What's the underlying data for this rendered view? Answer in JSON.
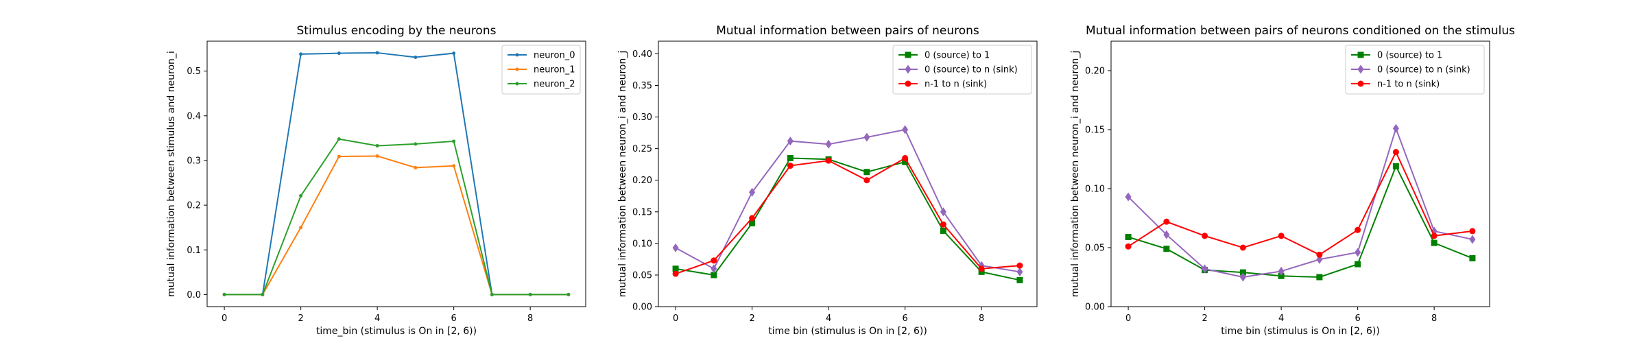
{
  "chart_data": [
    {
      "type": "line",
      "title": "Stimulus encoding by the neurons",
      "xlabel": "time_bin (stimulus is On in [2, 6))",
      "ylabel": "mutual information between stimulus and neuron_i",
      "x": [
        0,
        1,
        2,
        3,
        4,
        5,
        6,
        7,
        8,
        9
      ],
      "xlim": [
        -0.45,
        9.45
      ],
      "ylim": [
        -0.027,
        0.567
      ],
      "xticks": [
        0,
        2,
        4,
        6,
        8
      ],
      "yticks": [
        0.0,
        0.1,
        0.2,
        0.3,
        0.4,
        0.5
      ],
      "grid": false,
      "legend": "top-right",
      "series": [
        {
          "name": "neuron_0",
          "color": "#1f77b4",
          "marker": "dot",
          "values": [
            0.0,
            0.0,
            0.538,
            0.54,
            0.541,
            0.531,
            0.54,
            0.0,
            0.0,
            0.0
          ]
        },
        {
          "name": "neuron_1",
          "color": "#ff7f0e",
          "marker": "dot",
          "values": [
            0.0,
            0.0,
            0.15,
            0.309,
            0.31,
            0.284,
            0.288,
            0.0,
            0.0,
            0.0
          ]
        },
        {
          "name": "neuron_2",
          "color": "#2ca02c",
          "marker": "dot",
          "values": [
            0.0,
            0.0,
            0.221,
            0.348,
            0.333,
            0.337,
            0.343,
            0.0,
            0.0,
            0.0
          ]
        }
      ]
    },
    {
      "type": "line",
      "title": "Mutual information between pairs of neurons",
      "xlabel": "time bin (stimulus is On in [2, 6))",
      "ylabel": "mutual information between neuron_i and neuron_j",
      "x": [
        0,
        1,
        2,
        3,
        4,
        5,
        6,
        7,
        8,
        9
      ],
      "xlim": [
        -0.45,
        9.45
      ],
      "ylim": [
        0.0,
        0.42
      ],
      "xticks": [
        0,
        2,
        4,
        6,
        8
      ],
      "yticks": [
        0.0,
        0.05,
        0.1,
        0.15,
        0.2,
        0.25,
        0.3,
        0.35,
        0.4
      ],
      "grid": false,
      "legend": "top-right",
      "series": [
        {
          "name": "0 (source) to 1",
          "color": "#008000",
          "marker": "square",
          "values": [
            0.06,
            0.05,
            0.132,
            0.235,
            0.233,
            0.213,
            0.229,
            0.12,
            0.055,
            0.042
          ]
        },
        {
          "name": "0 (source) to n (sink)",
          "color": "#9467bd",
          "marker": "diamond",
          "values": [
            0.093,
            0.06,
            0.181,
            0.262,
            0.257,
            0.268,
            0.28,
            0.15,
            0.065,
            0.055
          ]
        },
        {
          "name": "n-1 to n (sink)",
          "color": "#ff0000",
          "marker": "circle",
          "values": [
            0.052,
            0.073,
            0.14,
            0.223,
            0.231,
            0.2,
            0.235,
            0.13,
            0.06,
            0.065
          ]
        }
      ]
    },
    {
      "type": "line",
      "title": "Mutual information between pairs of neurons conditioned on the stimulus",
      "xlabel": "time bin (stimulus is On in [2, 6))",
      "ylabel": "mutual information between neuron_i and neuron_j",
      "x": [
        0,
        1,
        2,
        3,
        4,
        5,
        6,
        7,
        8,
        9
      ],
      "xlim": [
        -0.45,
        9.45
      ],
      "ylim": [
        0.0,
        0.225
      ],
      "xticks": [
        0,
        2,
        4,
        6,
        8
      ],
      "yticks": [
        0.0,
        0.05,
        0.1,
        0.15,
        0.2
      ],
      "grid": false,
      "legend": "top-right",
      "series": [
        {
          "name": "0 (source) to 1",
          "color": "#008000",
          "marker": "square",
          "values": [
            0.059,
            0.049,
            0.031,
            0.029,
            0.026,
            0.025,
            0.036,
            0.119,
            0.054,
            0.041
          ]
        },
        {
          "name": "0 (source) to n (sink)",
          "color": "#9467bd",
          "marker": "diamond",
          "values": [
            0.093,
            0.061,
            0.032,
            0.025,
            0.03,
            0.04,
            0.046,
            0.151,
            0.064,
            0.057
          ]
        },
        {
          "name": "n-1 to n (sink)",
          "color": "#ff0000",
          "marker": "circle",
          "values": [
            0.051,
            0.072,
            0.06,
            0.05,
            0.06,
            0.044,
            0.065,
            0.131,
            0.06,
            0.064
          ]
        }
      ]
    }
  ]
}
